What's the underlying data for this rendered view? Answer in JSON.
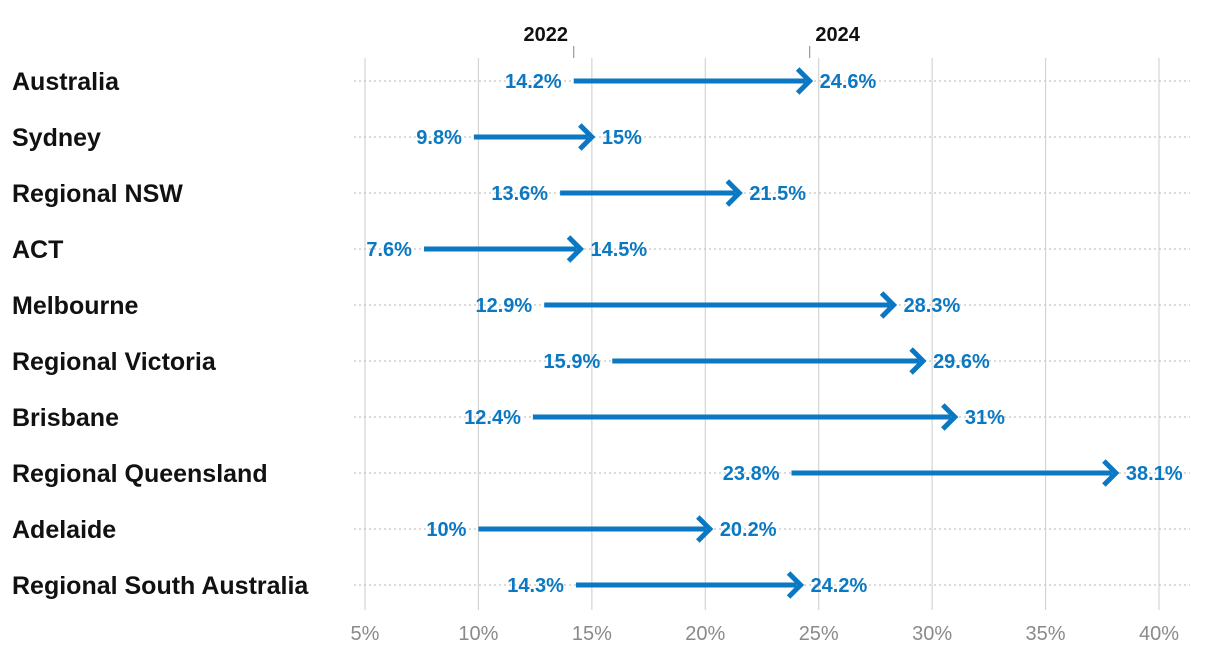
{
  "chart_data": {
    "type": "arrow-range",
    "title": "",
    "xlabel": "",
    "ylabel": "",
    "start_label": "2022",
    "end_label": "2024",
    "xlim": [
      5,
      40
    ],
    "ticks": [
      5,
      10,
      15,
      20,
      25,
      30,
      35,
      40
    ],
    "tick_labels": [
      "5%",
      "10%",
      "15%",
      "20%",
      "25%",
      "30%",
      "35%",
      "40%"
    ],
    "grid": true,
    "colors": {
      "arrow": "#0a78c2",
      "grid": "#d4d4d4",
      "row_line": "#c4c4c4",
      "label": "#111111",
      "tick": "#8a8a8a"
    },
    "rows": [
      {
        "category": "Australia",
        "start": 14.2,
        "end": 24.6,
        "start_label": "14.2%",
        "end_label": "24.6%"
      },
      {
        "category": "Sydney",
        "start": 9.8,
        "end": 15,
        "start_label": "9.8%",
        "end_label": "15%"
      },
      {
        "category": "Regional NSW",
        "start": 13.6,
        "end": 21.5,
        "start_label": "13.6%",
        "end_label": "21.5%"
      },
      {
        "category": "ACT",
        "start": 7.6,
        "end": 14.5,
        "start_label": "7.6%",
        "end_label": "14.5%"
      },
      {
        "category": "Melbourne",
        "start": 12.9,
        "end": 28.3,
        "start_label": "12.9%",
        "end_label": "28.3%"
      },
      {
        "category": "Regional Victoria",
        "start": 15.9,
        "end": 29.6,
        "start_label": "15.9%",
        "end_label": "29.6%"
      },
      {
        "category": "Brisbane",
        "start": 12.4,
        "end": 31,
        "start_label": "12.4%",
        "end_label": "31%"
      },
      {
        "category": "Regional Queensland",
        "start": 23.8,
        "end": 38.1,
        "start_label": "23.8%",
        "end_label": "38.1%"
      },
      {
        "category": "Adelaide",
        "start": 10,
        "end": 20.2,
        "start_label": "10%",
        "end_label": "20.2%"
      },
      {
        "category": "Regional South Australia",
        "start": 14.3,
        "end": 24.2,
        "start_label": "14.3%",
        "end_label": "24.2%"
      }
    ]
  }
}
